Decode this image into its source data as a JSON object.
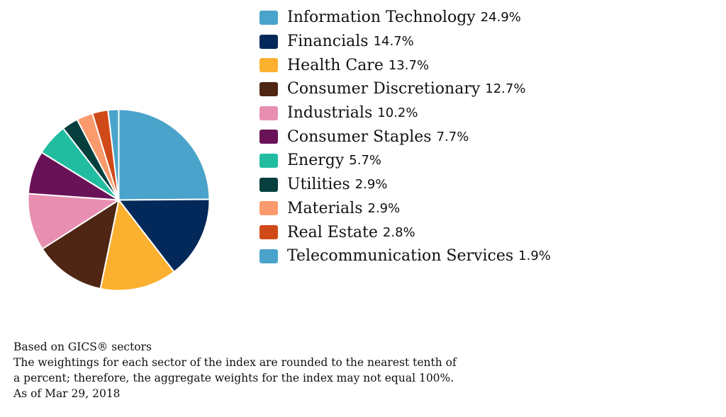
{
  "chart_data": {
    "type": "pie",
    "title": "",
    "legend_position": "right",
    "slices": [
      {
        "label": "Information Technology",
        "value": 24.9,
        "value_label": "24.9%",
        "color": "#4aa3ca"
      },
      {
        "label": "Financials",
        "value": 14.7,
        "value_label": "14.7%",
        "color": "#03295a"
      },
      {
        "label": "Health Care",
        "value": 13.7,
        "value_label": "13.7%",
        "color": "#fbb030"
      },
      {
        "label": "Consumer Discretionary",
        "value": 12.7,
        "value_label": "12.7%",
        "color": "#4f2613"
      },
      {
        "label": "Industrials",
        "value": 10.2,
        "value_label": "10.2%",
        "color": "#e88fb1"
      },
      {
        "label": "Consumer Staples",
        "value": 7.7,
        "value_label": "7.7%",
        "color": "#6a1258"
      },
      {
        "label": "Energy",
        "value": 5.7,
        "value_label": "5.7%",
        "color": "#22bda1"
      },
      {
        "label": "Utilities",
        "value": 2.9,
        "value_label": "2.9%",
        "color": "#073f3f"
      },
      {
        "label": "Materials",
        "value": 2.9,
        "value_label": "2.9%",
        "color": "#fb9a6c"
      },
      {
        "label": "Real Estate",
        "value": 2.8,
        "value_label": "2.8%",
        "color": "#d04a19"
      },
      {
        "label": "Telecommunication Services",
        "value": 1.9,
        "value_label": "1.9%",
        "color": "#4aa3ca"
      }
    ]
  },
  "notes": {
    "line1": "Based on GICS® sectors",
    "line2": "The weightings for each sector of the index are rounded to the nearest tenth of",
    "line3": "a percent; therefore, the aggregate weights for the index may not equal 100%.",
    "line4": "As of Mar 29, 2018"
  }
}
